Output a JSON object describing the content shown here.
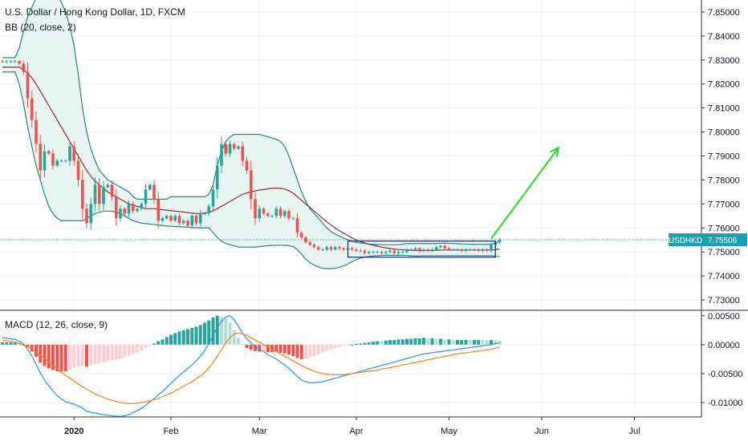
{
  "header": {
    "title": "U.S. Dollar / Hong Kong Dollar, 1D, FXCM",
    "bb_indicator": "BB (20, close, 2)",
    "macd_indicator": "MACD (12, 26, close, 9)"
  },
  "last_price": {
    "symbol": "USDHKD",
    "value_label": "7.75506",
    "value": 7.75506
  },
  "colors": {
    "up": "#26a69a",
    "down": "#ef5350",
    "bb_band": "#26867a",
    "bb_fill": "#e8f4f2",
    "bb_basis": "#8b2f2f",
    "macd_line": "#2196f3",
    "signal_line": "#ff7f0e",
    "hist_up_strong": "#26a69a",
    "hist_up_weak": "#b2dfdb",
    "hist_down_strong": "#ef5350",
    "hist_down_weak": "#ffcdd2",
    "arrow": "#22dd22",
    "box": "#1a237e",
    "price_line": "#1ba1b0"
  },
  "chart_data": {
    "type": "candlestick",
    "price_axis": {
      "ylim": [
        7.726,
        7.855
      ],
      "ticks": [
        7.73,
        7.74,
        7.75,
        7.76,
        7.77,
        7.78,
        7.79,
        7.8,
        7.81,
        7.82,
        7.83,
        7.84,
        7.85
      ],
      "tick_labels": [
        "7.73000",
        "7.74000",
        "7.75000",
        "7.76000",
        "7.77000",
        "7.78000",
        "7.79000",
        "7.80000",
        "7.81000",
        "7.82000",
        "7.83000",
        "7.84000",
        "7.85000"
      ]
    },
    "macd_axis": {
      "ylim": [
        -0.0125,
        0.0058
      ],
      "ticks": [
        0.005,
        0.0,
        -0.005,
        -0.01
      ],
      "tick_labels": [
        "0.00500",
        "0.00000",
        "-0.00500",
        "-0.01000"
      ]
    },
    "time_axis": {
      "labels": [
        "2020",
        "Feb",
        "Mar",
        "Apr",
        "May",
        "Jun",
        "Jul"
      ],
      "label_bar_index": [
        17,
        40,
        61,
        84,
        106,
        128,
        150
      ]
    },
    "bars": {
      "open": [
        7.8295,
        7.8293,
        7.8294,
        7.8294,
        7.8295,
        7.8285,
        7.825,
        7.814,
        7.805,
        7.795,
        7.784,
        7.792,
        7.791,
        7.786,
        7.788,
        7.788,
        7.788,
        7.794,
        7.788,
        7.78,
        7.768,
        7.762,
        7.77,
        7.778,
        7.77,
        7.777,
        7.778,
        7.773,
        7.764,
        7.768,
        7.766,
        7.77,
        7.767,
        7.768,
        7.77,
        7.776,
        7.778,
        7.772,
        7.763,
        7.764,
        7.765,
        7.763,
        7.765,
        7.762,
        7.763,
        7.761,
        7.765,
        7.762,
        7.766,
        7.766,
        7.769,
        7.776,
        7.786,
        7.795,
        7.791,
        7.795,
        7.793,
        7.794,
        7.788,
        7.784,
        7.772,
        7.764,
        7.768,
        7.766,
        7.765,
        7.765,
        7.768,
        7.765,
        7.767,
        7.764,
        7.764,
        7.758,
        7.756,
        7.754,
        7.753,
        7.752,
        7.751,
        7.751,
        7.752,
        7.751,
        7.752,
        7.7515,
        7.751,
        7.7515,
        7.751,
        7.7505,
        7.7505,
        7.7495,
        7.75,
        7.75,
        7.75,
        7.7495,
        7.75,
        7.7505,
        7.7495,
        7.75,
        7.75,
        7.751,
        7.751,
        7.7515,
        7.7505,
        7.751,
        7.7505,
        7.751,
        7.752,
        7.7525,
        7.7515,
        7.751,
        7.751,
        7.751,
        7.7505,
        7.751,
        7.751,
        7.751,
        7.7505,
        7.751,
        7.7505,
        7.753,
        7.754
      ],
      "close": [
        7.8293,
        7.8294,
        7.8294,
        7.8295,
        7.8285,
        7.825,
        7.814,
        7.805,
        7.795,
        7.784,
        7.792,
        7.791,
        7.786,
        7.788,
        7.788,
        7.788,
        7.794,
        7.788,
        7.78,
        7.768,
        7.762,
        7.77,
        7.778,
        7.77,
        7.777,
        7.778,
        7.773,
        7.764,
        7.768,
        7.766,
        7.77,
        7.767,
        7.768,
        7.77,
        7.776,
        7.778,
        7.772,
        7.763,
        7.764,
        7.765,
        7.763,
        7.765,
        7.762,
        7.763,
        7.761,
        7.765,
        7.762,
        7.766,
        7.766,
        7.769,
        7.776,
        7.786,
        7.795,
        7.791,
        7.795,
        7.793,
        7.794,
        7.788,
        7.784,
        7.772,
        7.764,
        7.768,
        7.766,
        7.765,
        7.765,
        7.768,
        7.765,
        7.767,
        7.764,
        7.764,
        7.758,
        7.756,
        7.754,
        7.753,
        7.752,
        7.751,
        7.751,
        7.752,
        7.751,
        7.752,
        7.7515,
        7.751,
        7.7515,
        7.751,
        7.7505,
        7.7505,
        7.7495,
        7.75,
        7.75,
        7.75,
        7.7495,
        7.75,
        7.7505,
        7.7495,
        7.75,
        7.75,
        7.751,
        7.751,
        7.7515,
        7.7505,
        7.751,
        7.7505,
        7.751,
        7.752,
        7.7525,
        7.7515,
        7.751,
        7.751,
        7.751,
        7.7505,
        7.751,
        7.751,
        7.751,
        7.7505,
        7.751,
        7.7505,
        7.753,
        7.754,
        7.7551
      ]
    },
    "bb_upper": [
      7.831,
      7.831,
      7.831,
      7.831,
      7.835,
      7.842,
      7.848,
      7.852,
      7.856,
      7.858,
      7.859,
      7.86,
      7.859,
      7.857,
      7.854,
      7.85,
      7.844,
      7.836,
      7.824,
      7.81,
      7.8,
      7.793,
      7.788,
      7.784,
      7.782,
      7.78,
      7.779,
      7.778,
      7.777,
      7.776,
      7.775,
      7.773,
      7.772,
      7.772,
      7.772,
      7.772,
      7.772,
      7.772,
      7.772,
      7.772,
      7.773,
      7.773,
      7.773,
      7.773,
      7.773,
      7.773,
      7.773,
      7.773,
      7.773,
      7.774,
      7.778,
      7.786,
      7.792,
      7.796,
      7.798,
      7.799,
      7.799,
      7.799,
      7.799,
      7.799,
      7.799,
      7.799,
      7.7985,
      7.798,
      7.7975,
      7.797,
      7.796,
      7.794,
      7.79,
      7.785,
      7.78,
      7.775,
      7.771,
      7.768,
      7.766,
      7.764,
      7.762,
      7.76,
      7.7585,
      7.7575,
      7.7565,
      7.7558,
      7.755,
      7.7545,
      7.754,
      7.7537,
      7.7535,
      7.7533,
      7.7532,
      7.7531,
      7.753,
      7.753,
      7.753,
      7.753,
      7.753,
      7.7532,
      7.7535,
      7.7535,
      7.7535,
      7.7535,
      7.7535,
      7.7535,
      7.7535,
      7.7535,
      7.7536,
      7.7537,
      7.7536,
      7.7535,
      7.7534,
      7.7533,
      7.7533,
      7.7532,
      7.7532,
      7.7532,
      7.7532,
      7.7532,
      7.7532,
      7.7538,
      7.7545
    ],
    "bb_basis": [
      7.827,
      7.827,
      7.827,
      7.827,
      7.827,
      7.826,
      7.8245,
      7.8225,
      7.82,
      7.817,
      7.814,
      7.811,
      7.808,
      7.805,
      7.802,
      7.799,
      7.796,
      7.793,
      7.79,
      7.787,
      7.784,
      7.7815,
      7.7795,
      7.778,
      7.7765,
      7.775,
      7.774,
      7.773,
      7.772,
      7.771,
      7.77,
      7.7695,
      7.769,
      7.7685,
      7.768,
      7.768,
      7.768,
      7.7678,
      7.7676,
      7.7674,
      7.7672,
      7.767,
      7.7668,
      7.7666,
      7.7664,
      7.7662,
      7.766,
      7.766,
      7.7662,
      7.7665,
      7.7672,
      7.768,
      7.769,
      7.77,
      7.771,
      7.772,
      7.773,
      7.774,
      7.7746,
      7.775,
      7.7754,
      7.7758,
      7.776,
      7.7763,
      7.7765,
      7.7766,
      7.7765,
      7.7762,
      7.7755,
      7.7745,
      7.773,
      7.7715,
      7.77,
      7.7685,
      7.767,
      7.7655,
      7.764,
      7.7625,
      7.7612,
      7.76,
      7.7588,
      7.7578,
      7.7568,
      7.7558,
      7.755,
      7.7543,
      7.7537,
      7.7532,
      7.7528,
      7.7524,
      7.752,
      7.7517,
      7.7514,
      7.7512,
      7.751,
      7.7509,
      7.7508,
      7.7507,
      7.7506,
      7.7506,
      7.7506,
      7.7506,
      7.7506,
      7.7507,
      7.7508,
      7.7508,
      7.7508,
      7.7508,
      7.7508,
      7.7508,
      7.7508,
      7.7508,
      7.7508,
      7.7508,
      7.7508,
      7.7508,
      7.7508,
      7.751,
      7.7512
    ],
    "bb_lower": [
      7.825,
      7.825,
      7.825,
      7.825,
      7.82,
      7.812,
      7.802,
      7.794,
      7.786,
      7.78,
      7.774,
      7.769,
      7.766,
      7.764,
      7.763,
      7.763,
      7.763,
      7.763,
      7.763,
      7.763,
      7.764,
      7.765,
      7.766,
      7.7665,
      7.767,
      7.767,
      7.767,
      7.7665,
      7.766,
      7.765,
      7.764,
      7.763,
      7.7625,
      7.762,
      7.7618,
      7.7616,
      7.7614,
      7.7612,
      7.761,
      7.7608,
      7.7607,
      7.7606,
      7.7605,
      7.7604,
      7.7603,
      7.7602,
      7.7601,
      7.76,
      7.76,
      7.76,
      7.758,
      7.756,
      7.7545,
      7.7535,
      7.753,
      7.7525,
      7.752,
      7.752,
      7.752,
      7.752,
      7.752,
      7.7522,
      7.7524,
      7.7526,
      7.7527,
      7.7528,
      7.7528,
      7.7527,
      7.7526,
      7.7522,
      7.751,
      7.749,
      7.747,
      7.7455,
      7.7445,
      7.7437,
      7.7432,
      7.743,
      7.743,
      7.7432,
      7.7436,
      7.7442,
      7.745,
      7.746,
      7.7468,
      7.7474,
      7.7478,
      7.7481,
      7.7483,
      7.7484,
      7.7485,
      7.7486,
      7.7486,
      7.7486,
      7.7486,
      7.7486,
      7.7485,
      7.7484,
      7.7483,
      7.7483,
      7.7484,
      7.7484,
      7.7484,
      7.7484,
      7.7484,
      7.7484,
      7.7484,
      7.7484,
      7.7484,
      7.7484,
      7.7484,
      7.7484,
      7.7484,
      7.7484,
      7.7484,
      7.7484,
      7.7484,
      7.7482,
      7.748
    ],
    "macd": [
      0.0012,
      0.0011,
      0.001,
      0.0009,
      0.0006,
      0.0001,
      -0.0008,
      -0.002,
      -0.0034,
      -0.0049,
      -0.0061,
      -0.0071,
      -0.008,
      -0.0088,
      -0.0094,
      -0.0099,
      -0.0101,
      -0.0103,
      -0.0106,
      -0.011,
      -0.0115,
      -0.0117,
      -0.0118,
      -0.012,
      -0.0121,
      -0.0122,
      -0.0123,
      -0.0124,
      -0.0124,
      -0.0123,
      -0.0121,
      -0.0118,
      -0.0114,
      -0.011,
      -0.0105,
      -0.0099,
      -0.0093,
      -0.0087,
      -0.0081,
      -0.0074,
      -0.0067,
      -0.006,
      -0.0053,
      -0.0047,
      -0.0041,
      -0.0035,
      -0.0028,
      -0.002,
      -0.001,
      0.0002,
      0.0016,
      0.003,
      0.004,
      0.0048,
      0.005,
      0.0043,
      0.0032,
      0.002,
      0.001,
      0.0003,
      -0.0003,
      -0.0008,
      -0.0012,
      -0.0017,
      -0.0021,
      -0.0025,
      -0.003,
      -0.0035,
      -0.0041,
      -0.0048,
      -0.0055,
      -0.0061,
      -0.0064,
      -0.0066,
      -0.0066,
      -0.0065,
      -0.0064,
      -0.0062,
      -0.006,
      -0.0058,
      -0.0056,
      -0.0054,
      -0.0052,
      -0.005,
      -0.0048,
      -0.0046,
      -0.0044,
      -0.0042,
      -0.004,
      -0.0038,
      -0.0036,
      -0.0034,
      -0.0032,
      -0.003,
      -0.0028,
      -0.0026,
      -0.0024,
      -0.0022,
      -0.002,
      -0.0018,
      -0.0016,
      -0.0015,
      -0.0014,
      -0.0013,
      -0.0012,
      -0.0011,
      -0.001,
      -0.0009,
      -0.0008,
      -0.0007,
      -0.0006,
      -0.0005,
      -0.0004,
      -0.0003,
      -0.0002,
      -0.0001,
      0.0,
      0.0002,
      0.0003
    ],
    "signal": [
      0.0008,
      0.0007,
      0.0006,
      0.0004,
      0.0002,
      -0.0001,
      -0.0004,
      -0.0008,
      -0.0013,
      -0.0018,
      -0.0024,
      -0.003,
      -0.0036,
      -0.0042,
      -0.0048,
      -0.0053,
      -0.0058,
      -0.0063,
      -0.0068,
      -0.0073,
      -0.0077,
      -0.0081,
      -0.0085,
      -0.0088,
      -0.0091,
      -0.0094,
      -0.0096,
      -0.0098,
      -0.01,
      -0.0101,
      -0.0102,
      -0.0102,
      -0.0101,
      -0.01,
      -0.0099,
      -0.0097,
      -0.0095,
      -0.0093,
      -0.009,
      -0.0087,
      -0.0084,
      -0.008,
      -0.0076,
      -0.0072,
      -0.0068,
      -0.0064,
      -0.0059,
      -0.0054,
      -0.0048,
      -0.004,
      -0.0031,
      -0.002,
      -0.0008,
      0.0003,
      0.0012,
      0.0018,
      0.002,
      0.0019,
      0.0016,
      0.0012,
      0.0008,
      0.0004,
      0.0,
      -0.0004,
      -0.0008,
      -0.0012,
      -0.0016,
      -0.002,
      -0.0024,
      -0.0028,
      -0.0032,
      -0.0036,
      -0.004,
      -0.0043,
      -0.0046,
      -0.0048,
      -0.005,
      -0.0051,
      -0.0052,
      -0.0052,
      -0.0052,
      -0.0052,
      -0.0051,
      -0.005,
      -0.0049,
      -0.0048,
      -0.0047,
      -0.0046,
      -0.0045,
      -0.0044,
      -0.0042,
      -0.0041,
      -0.004,
      -0.0038,
      -0.0037,
      -0.0035,
      -0.0034,
      -0.0032,
      -0.0031,
      -0.0029,
      -0.0028,
      -0.0026,
      -0.0025,
      -0.0023,
      -0.0022,
      -0.002,
      -0.0019,
      -0.0017,
      -0.0016,
      -0.0015,
      -0.0014,
      -0.0013,
      -0.0012,
      -0.0011,
      -0.001,
      -0.0009,
      -0.0008,
      -0.0006,
      -0.0004
    ],
    "consolidation_box": {
      "start_bar": 82,
      "end_bar": 117,
      "low": 7.7478,
      "high": 7.7545
    },
    "projection_arrow": {
      "from_bar": 116,
      "from_price": 7.7555,
      "to_bar": 132,
      "to_price": 7.7935
    }
  }
}
